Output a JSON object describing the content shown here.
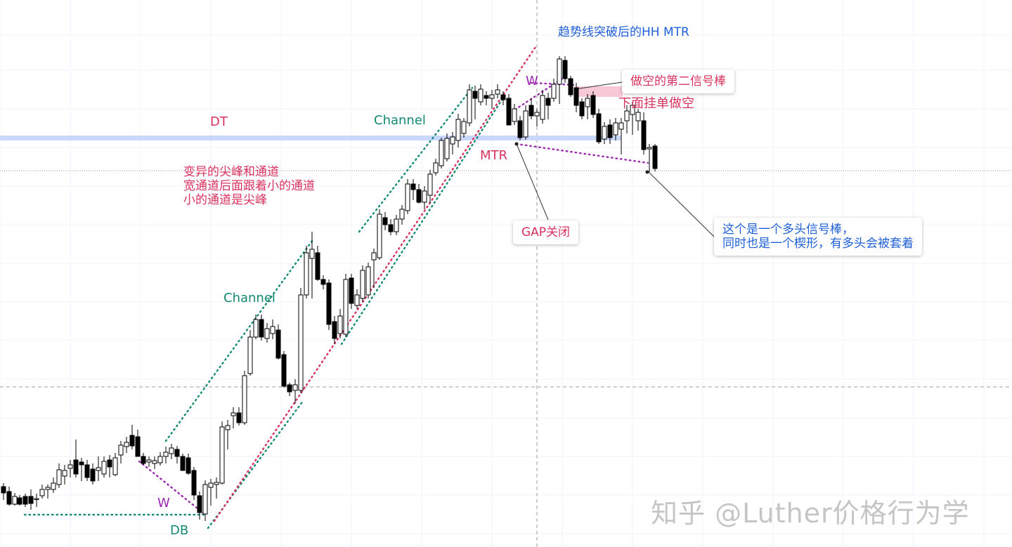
{
  "chart_data": {
    "type": "candlestick",
    "annotations": {
      "dt": "DT",
      "channel_upper": "Channel",
      "channel_lower": "Channel",
      "variant_note": [
        "变异的尖峰和通道",
        "宽通道后面跟着小的通道",
        "小的通道是尖峰"
      ],
      "mtr": "MTR",
      "w_top": "W",
      "w_bottom": "W",
      "db": "DB",
      "hh_mtr": "趋势线突破后的HH MTR",
      "short_second_signal": "做空的第二信号棒",
      "sell_stop": "下面挂单做空",
      "gap_closed": "GAP关闭",
      "bull_signal_note": "这个是一个多头信号棒，\n同时也是一个楔形，有多头会被套着"
    },
    "colors": {
      "bull": "#000000",
      "bear": "#000000",
      "dt_line": "#c9d7fb",
      "channel_green": "#138a72",
      "channel_red": "#d8325f",
      "wedge_purple": "#9c27b0",
      "label_pink": "#d8325f",
      "label_blue": "#1e5fd6",
      "label_green": "#138a72",
      "label_purple": "#9c27b0",
      "highlight_pink": "#f8c8d6"
    }
  },
  "watermark": "知乎 @Luther价格行为学"
}
